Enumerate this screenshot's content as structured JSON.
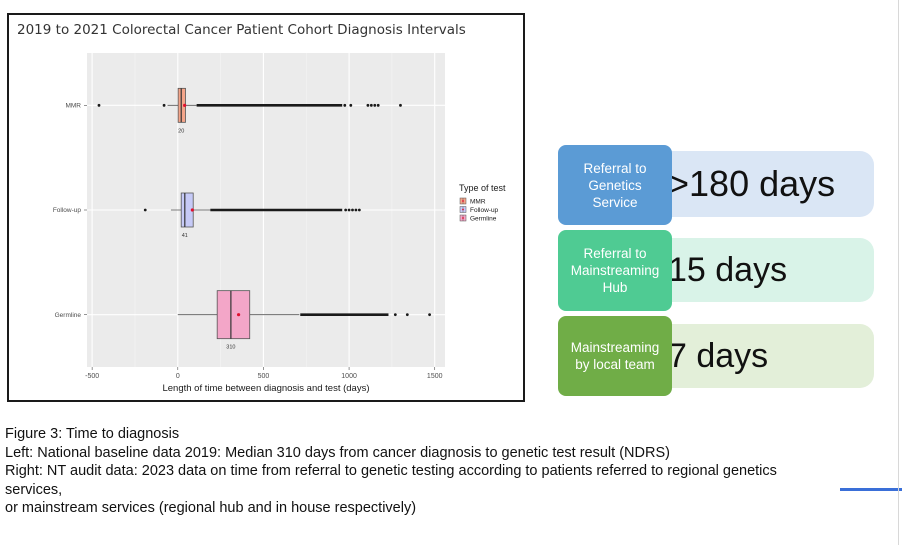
{
  "chart_data": {
    "type": "boxplot",
    "title": "2019 to 2021 Colorectal Cancer Patient Cohort Diagnosis Intervals",
    "xlabel": "Length of time between diagnosis and test (days)",
    "ylabel": "",
    "xlim": [
      -530,
      1560
    ],
    "xticks": [
      -500,
      0,
      500,
      1000,
      1500
    ],
    "xtick_labels": [
      "-500",
      "0",
      "500",
      "1000",
      "1500"
    ],
    "grid": true,
    "legend": {
      "title": "Type of test",
      "position": "right",
      "entries": [
        "MMR",
        "Follow-up",
        "Germline"
      ]
    },
    "series": [
      {
        "name": "MMR",
        "color": "#f4a58a",
        "q1": 2,
        "median": 20,
        "q3": 45,
        "whisker_low": -60,
        "whisker_high": 110,
        "mean": 40,
        "median_label": "20",
        "outliers_dense": [
          110,
          960
        ],
        "outliers": [
          -460,
          -80,
          975,
          1010,
          1110,
          1130,
          1150,
          1170,
          1300
        ]
      },
      {
        "name": "Follow-up",
        "color": "#c6caf7",
        "q1": 20,
        "median": 41,
        "q3": 90,
        "whisker_low": -40,
        "whisker_high": 190,
        "mean": 85,
        "median_label": "41",
        "outliers_dense": [
          190,
          960
        ],
        "outliers": [
          -190,
          980,
          1000,
          1020,
          1040,
          1060
        ]
      },
      {
        "name": "Germline",
        "color": "#f3a6c8",
        "q1": 230,
        "median": 310,
        "q3": 420,
        "whisker_low": 0,
        "whisker_high": 710,
        "mean": 355,
        "median_label": "310",
        "outliers_dense": [
          715,
          1230
        ],
        "outliers": [
          1270,
          1340,
          1470
        ]
      }
    ]
  },
  "flow": [
    {
      "label": "Referral to\nGenetics\nService",
      "value": ">180 days",
      "box_color": "#5b9bd5",
      "pill_color": "#dae6f5"
    },
    {
      "label": "Referral to\nMainstreaming\nHub",
      "value": "15 days",
      "box_color": "#4fcb93",
      "pill_color": "#d9f3e8"
    },
    {
      "label": "Mainstreaming\nby local team",
      "value": "7 days",
      "box_color": "#70ad47",
      "pill_color": "#e3efd9"
    }
  ],
  "caption": {
    "line1": "Figure 3: Time to diagnosis",
    "line2": "Left: National baseline data 2019: Median 310 days from cancer diagnosis to genetic test result (NDRS)",
    "line3": "Right: NT audit data: 2023 data on time from referral to genetic testing according to patients referred to regional genetics",
    "line4": "services,",
    "line5": "or mainstream services (regional hub and in house respectively)"
  }
}
